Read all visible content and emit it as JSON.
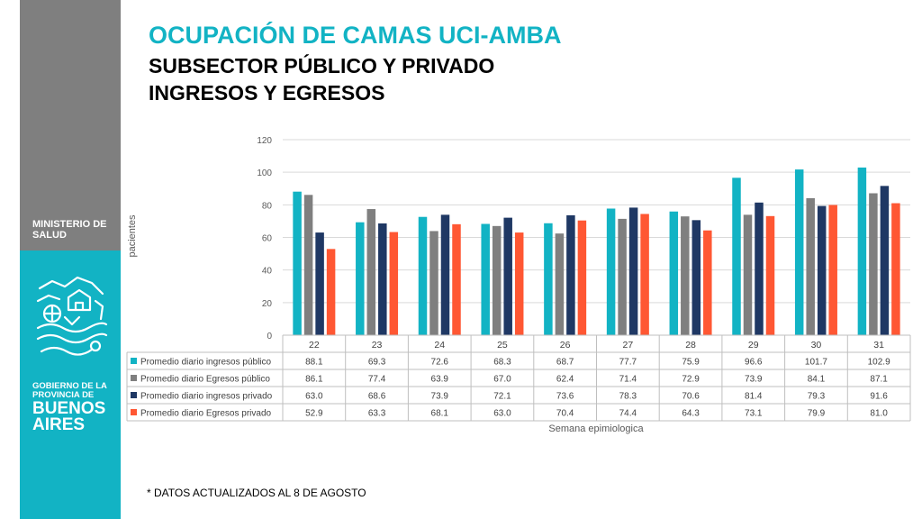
{
  "header": {
    "title": "OCUPACIÓN DE CAMAS UCI-AMBA",
    "subtitle_line1": "SUBSECTOR PÚBLICO Y PRIVADO",
    "subtitle_line2": "INGRESOS Y EGRESOS"
  },
  "sidebar": {
    "ministry_line1": "MINISTERIO DE",
    "ministry_line2": "SALUD",
    "gov_line1": "GOBIERNO DE LA",
    "gov_line2": "PROVINCIA DE",
    "gov_line3": "BUENOS",
    "gov_line4": "AIRES",
    "logo_icon": "buenos-aires-city-logo-icon",
    "colors": {
      "gray": "#7f7f7f",
      "teal": "#12b3c4"
    }
  },
  "footnote": "* DATOS ACTUALIZADOS AL 8 DE AGOSTO",
  "chart_data": {
    "type": "bar",
    "title": "",
    "xlabel": "Semana epimiologica",
    "ylabel": "pacientes",
    "ylim": [
      0,
      120
    ],
    "yticks": [
      0,
      20,
      40,
      60,
      80,
      100,
      120
    ],
    "grid": true,
    "legend": "data-table-below",
    "categories": [
      "22",
      "23",
      "24",
      "25",
      "26",
      "27",
      "28",
      "29",
      "30",
      "31"
    ],
    "series": [
      {
        "name": "Promedio diario ingresos  público",
        "color": "#12b3c4",
        "values_text": [
          "88.1",
          "69.3",
          "72.6",
          "68.3",
          "68.7",
          "77.7",
          "75.9",
          "96.6",
          "101.7",
          "102.9"
        ],
        "values": [
          88.1,
          69.3,
          72.6,
          68.3,
          68.7,
          77.7,
          75.9,
          96.6,
          101.7,
          102.9
        ]
      },
      {
        "name": "Promedio diario Egresos  público",
        "color": "#7f7f7f",
        "values_text": [
          "86.1",
          "77.4",
          "63.9",
          "67.0",
          "62.4",
          "71.4",
          "72.9",
          "73.9",
          "84.1",
          "87.1"
        ],
        "values": [
          86.1,
          77.4,
          63.9,
          67.0,
          62.4,
          71.4,
          72.9,
          73.9,
          84.1,
          87.1
        ]
      },
      {
        "name": "Promedio diario ingresos privado",
        "color": "#1f3864",
        "values_text": [
          "63.0",
          "68.6",
          "73.9",
          "72.1",
          "73.6",
          "78.3",
          "70.6",
          "81.4",
          "79.3",
          "91.6"
        ],
        "values": [
          63.0,
          68.6,
          73.9,
          72.1,
          73.6,
          78.3,
          70.6,
          81.4,
          79.3,
          91.6
        ]
      },
      {
        "name": "Promedio diario Egresos privado",
        "color": "#ff5733",
        "values_text": [
          "52.9",
          "63.3",
          "68.1",
          "63.0",
          "70.4",
          "74.4",
          "64.3",
          "73.1",
          "79.9",
          "81.0"
        ],
        "values": [
          52.9,
          63.3,
          68.1,
          63.0,
          70.4,
          74.4,
          64.3,
          73.1,
          79.9,
          81.0
        ]
      }
    ]
  }
}
